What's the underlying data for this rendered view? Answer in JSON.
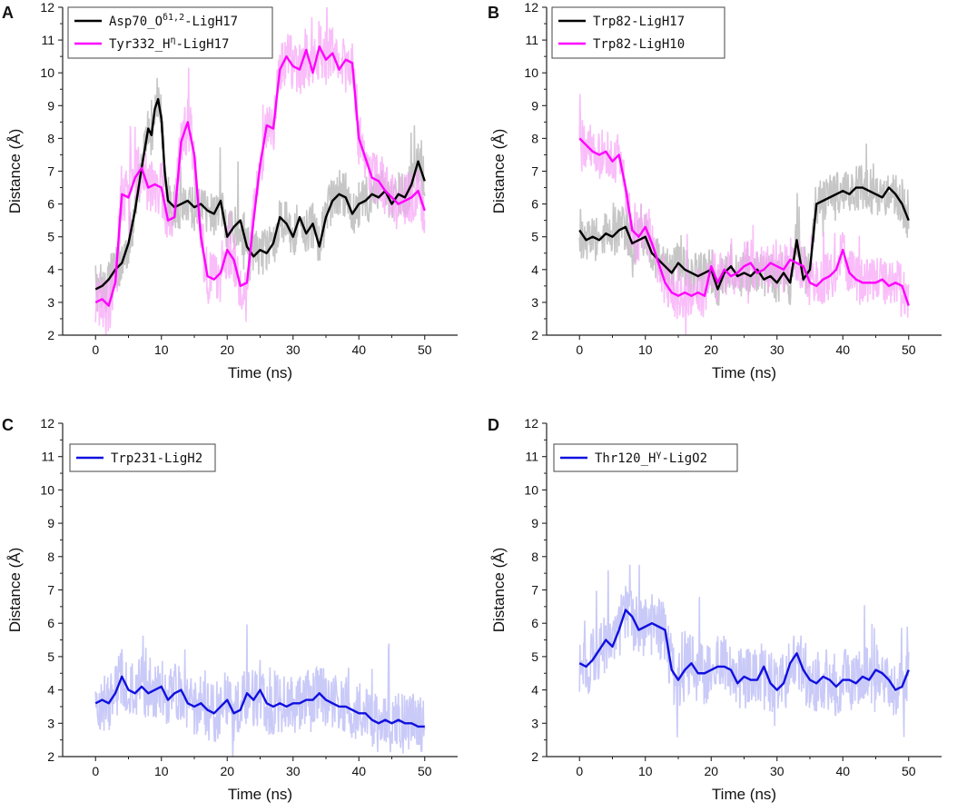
{
  "figure": {
    "description_free": true
  },
  "chart_data": [
    {
      "panel": "A",
      "type": "line",
      "xlabel": "Time (ns)",
      "ylabel": "Distance (Å)",
      "xlim": [
        -5,
        55
      ],
      "ylim": [
        2,
        12
      ],
      "xticks": [
        0,
        10,
        20,
        30,
        40,
        50
      ],
      "yticks": [
        2,
        3,
        4,
        5,
        6,
        7,
        8,
        9,
        10,
        11,
        12
      ],
      "legend_position": "top-left",
      "series": [
        {
          "name": "Asp70_Oδ1,2-LigH17",
          "legend_main": "Asp70_O",
          "legend_sup": "δ1,2",
          "legend_tail": "-LigH17",
          "color": "#000000",
          "band_color": "#b3b3b3",
          "band_spread": 0.75,
          "x": [
            0,
            1,
            2,
            3,
            4,
            5,
            6,
            7,
            8,
            8.5,
            9,
            9.5,
            10,
            10.5,
            11,
            12,
            13,
            14,
            15,
            16,
            17,
            18,
            19,
            20,
            21,
            22,
            23,
            24,
            25,
            26,
            27,
            28,
            29,
            30,
            31,
            32,
            33,
            34,
            35,
            36,
            37,
            38,
            39,
            40,
            41,
            42,
            43,
            44,
            45,
            46,
            47,
            48,
            49,
            50
          ],
          "y": [
            3.4,
            3.5,
            3.7,
            4.0,
            4.2,
            4.8,
            5.8,
            7.1,
            8.3,
            8.1,
            8.9,
            9.2,
            8.6,
            7.0,
            6.1,
            5.9,
            6.0,
            6.1,
            5.9,
            6.0,
            5.8,
            5.7,
            6.1,
            5.0,
            5.3,
            5.5,
            4.7,
            4.4,
            4.6,
            4.5,
            4.8,
            5.6,
            5.4,
            5.0,
            5.6,
            5.1,
            5.4,
            4.7,
            5.6,
            6.1,
            6.3,
            6.2,
            5.7,
            6.0,
            6.1,
            6.3,
            6.2,
            6.4,
            6.0,
            6.3,
            6.2,
            6.6,
            7.3,
            6.7
          ]
        },
        {
          "name": "Tyr332_Hη-LigH17",
          "legend_main": "Tyr332_H",
          "legend_sup": "η",
          "legend_tail": "-LigH17",
          "color": "#ff00ff",
          "band_color": "#f7a8f7",
          "band_spread": 0.85,
          "x": [
            0,
            1,
            2,
            3,
            4,
            5,
            6,
            7,
            8,
            9,
            10,
            11,
            12,
            13,
            14,
            15,
            16,
            17,
            18,
            19,
            20,
            21,
            22,
            23,
            24,
            25,
            26,
            27,
            28,
            29,
            30,
            31,
            32,
            33,
            34,
            35,
            36,
            37,
            38,
            39,
            40,
            41,
            42,
            43,
            44,
            45,
            46,
            47,
            48,
            49,
            50
          ],
          "y": [
            3.0,
            3.1,
            2.9,
            3.6,
            6.3,
            6.2,
            6.8,
            7.1,
            6.5,
            6.6,
            6.5,
            5.5,
            5.6,
            7.9,
            8.5,
            7.5,
            5.0,
            3.8,
            3.7,
            3.9,
            4.6,
            4.3,
            3.5,
            3.6,
            5.5,
            7.2,
            8.4,
            8.3,
            10.1,
            10.5,
            10.2,
            10.1,
            10.7,
            10.0,
            10.8,
            10.4,
            10.6,
            10.1,
            10.4,
            10.3,
            8.0,
            7.4,
            6.8,
            6.7,
            6.4,
            6.2,
            6.0,
            6.1,
            6.2,
            6.4,
            5.8
          ]
        }
      ]
    },
    {
      "panel": "B",
      "type": "line",
      "xlabel": "Time (ns)",
      "ylabel": "Distance (Å)",
      "xlim": [
        -5,
        55
      ],
      "ylim": [
        2,
        12
      ],
      "xticks": [
        0,
        10,
        20,
        30,
        40,
        50
      ],
      "yticks": [
        2,
        3,
        4,
        5,
        6,
        7,
        8,
        9,
        10,
        11,
        12
      ],
      "legend_position": "top-left",
      "series": [
        {
          "name": "Trp82-LigH17",
          "legend_main": "Trp82-LigH17",
          "legend_sup": "",
          "legend_tail": "",
          "color": "#000000",
          "band_color": "#b3b3b3",
          "band_spread": 0.7,
          "x": [
            0,
            1,
            2,
            3,
            4,
            5,
            6,
            7,
            8,
            9,
            10,
            11,
            12,
            13,
            14,
            15,
            16,
            17,
            18,
            19,
            20,
            21,
            22,
            23,
            24,
            25,
            26,
            27,
            28,
            29,
            30,
            31,
            32,
            33,
            34,
            35,
            36,
            37,
            38,
            39,
            40,
            41,
            42,
            43,
            44,
            45,
            46,
            47,
            48,
            49,
            50
          ],
          "y": [
            5.2,
            4.9,
            5.0,
            4.9,
            5.1,
            5.0,
            5.2,
            5.3,
            4.8,
            4.9,
            5.0,
            4.5,
            4.3,
            4.1,
            3.9,
            4.2,
            4.0,
            3.9,
            3.8,
            3.9,
            4.0,
            3.4,
            3.9,
            4.1,
            3.8,
            3.9,
            3.8,
            4.0,
            3.7,
            3.8,
            3.6,
            3.9,
            3.6,
            4.9,
            3.7,
            4.0,
            6.0,
            6.1,
            6.2,
            6.3,
            6.4,
            6.3,
            6.5,
            6.5,
            6.4,
            6.3,
            6.2,
            6.5,
            6.3,
            6.0,
            5.5
          ]
        },
        {
          "name": "Trp82-LigH10",
          "legend_main": "Trp82-LigH10",
          "legend_sup": "",
          "legend_tail": "",
          "color": "#ff00ff",
          "band_color": "#f7a8f7",
          "band_spread": 0.75,
          "x": [
            0,
            1,
            2,
            3,
            4,
            5,
            6,
            7,
            8,
            9,
            10,
            11,
            12,
            13,
            14,
            15,
            16,
            17,
            18,
            19,
            20,
            21,
            22,
            23,
            24,
            25,
            26,
            27,
            28,
            29,
            30,
            31,
            32,
            33,
            34,
            35,
            36,
            37,
            38,
            39,
            40,
            41,
            42,
            43,
            44,
            45,
            46,
            47,
            48,
            49,
            50
          ],
          "y": [
            8.0,
            7.8,
            7.6,
            7.5,
            7.6,
            7.3,
            7.5,
            6.5,
            5.2,
            5.0,
            5.3,
            4.8,
            4.2,
            3.6,
            3.3,
            3.2,
            3.3,
            3.2,
            3.3,
            3.2,
            4.1,
            3.6,
            4.0,
            3.8,
            3.9,
            4.1,
            4.2,
            3.9,
            4.0,
            4.2,
            4.1,
            4.0,
            4.3,
            4.2,
            4.1,
            3.6,
            3.5,
            3.7,
            3.8,
            4.0,
            4.6,
            3.9,
            3.7,
            3.6,
            3.6,
            3.6,
            3.7,
            3.5,
            3.6,
            3.5,
            2.9
          ]
        }
      ]
    },
    {
      "panel": "C",
      "type": "line",
      "xlabel": "Time (ns)",
      "ylabel": "Distance (Å)",
      "xlim": [
        -5,
        55
      ],
      "ylim": [
        2,
        12
      ],
      "xticks": [
        0,
        10,
        20,
        30,
        40,
        50
      ],
      "yticks": [
        2,
        3,
        4,
        5,
        6,
        7,
        8,
        9,
        10,
        11,
        12
      ],
      "legend_position": "top-left",
      "series": [
        {
          "name": "Trp231-LigH2",
          "legend_main": "Trp231-LigH2",
          "legend_sup": "",
          "legend_tail": "",
          "color": "#1010e0",
          "band_color": "#b8b8f5",
          "band_spread": 0.9,
          "x": [
            0,
            1,
            2,
            3,
            4,
            5,
            6,
            7,
            8,
            9,
            10,
            11,
            12,
            13,
            14,
            15,
            16,
            17,
            18,
            19,
            20,
            21,
            22,
            23,
            24,
            25,
            26,
            27,
            28,
            29,
            30,
            31,
            32,
            33,
            34,
            35,
            36,
            37,
            38,
            39,
            40,
            41,
            42,
            43,
            44,
            45,
            46,
            47,
            48,
            49,
            50
          ],
          "y": [
            3.6,
            3.7,
            3.6,
            3.9,
            4.4,
            4.0,
            3.9,
            4.1,
            3.9,
            4.0,
            4.1,
            3.7,
            3.9,
            4.0,
            3.6,
            3.5,
            3.6,
            3.4,
            3.3,
            3.5,
            3.7,
            3.3,
            3.4,
            3.9,
            3.7,
            4.0,
            3.6,
            3.5,
            3.6,
            3.5,
            3.6,
            3.6,
            3.7,
            3.7,
            3.9,
            3.7,
            3.6,
            3.5,
            3.5,
            3.4,
            3.3,
            3.3,
            3.1,
            3.0,
            3.1,
            3.0,
            3.1,
            3.0,
            3.0,
            2.9,
            2.9
          ]
        }
      ]
    },
    {
      "panel": "D",
      "type": "line",
      "xlabel": "Time (ns)",
      "ylabel": "Distance (Å)",
      "xlim": [
        -5,
        55
      ],
      "ylim": [
        2,
        12
      ],
      "xticks": [
        0,
        10,
        20,
        30,
        40,
        50
      ],
      "yticks": [
        2,
        3,
        4,
        5,
        6,
        7,
        8,
        9,
        10,
        11,
        12
      ],
      "legend_position": "top-left",
      "series": [
        {
          "name": "Thr120_Hγ-LigO2",
          "legend_main": "Thr120_H",
          "legend_sup": "γ",
          "legend_tail": "-LigO2",
          "color": "#1010e0",
          "band_color": "#b8b8f5",
          "band_spread": 0.95,
          "x": [
            0,
            1,
            2,
            3,
            4,
            5,
            6,
            7,
            8,
            9,
            10,
            11,
            12,
            13,
            14,
            15,
            16,
            17,
            18,
            19,
            20,
            21,
            22,
            23,
            24,
            25,
            26,
            27,
            28,
            29,
            30,
            31,
            32,
            33,
            34,
            35,
            36,
            37,
            38,
            39,
            40,
            41,
            42,
            43,
            44,
            45,
            46,
            47,
            48,
            49,
            50
          ],
          "y": [
            4.8,
            4.7,
            4.9,
            5.2,
            5.5,
            5.3,
            5.8,
            6.4,
            6.2,
            5.8,
            5.9,
            6.0,
            5.9,
            5.8,
            4.6,
            4.3,
            4.6,
            4.8,
            4.5,
            4.5,
            4.6,
            4.7,
            4.7,
            4.6,
            4.2,
            4.4,
            4.3,
            4.3,
            4.7,
            4.2,
            4.0,
            4.2,
            4.8,
            5.1,
            4.6,
            4.3,
            4.2,
            4.4,
            4.3,
            4.1,
            4.3,
            4.3,
            4.2,
            4.4,
            4.3,
            4.6,
            4.5,
            4.3,
            4.0,
            4.1,
            4.6
          ]
        }
      ]
    }
  ]
}
